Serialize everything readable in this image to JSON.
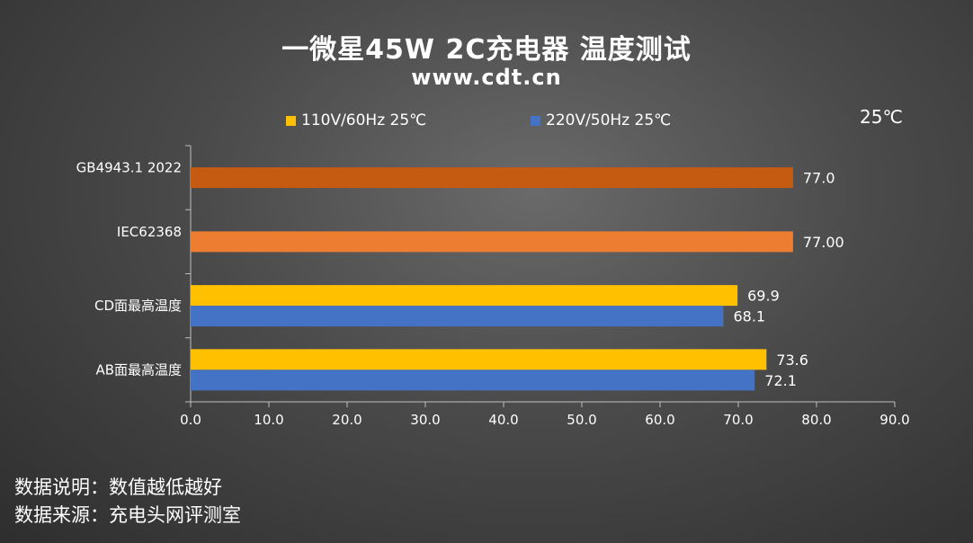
{
  "header": {
    "title": "一微星45W 2C充电器 温度测试",
    "subtitle": "www.cdt.cn",
    "temp_note": "25℃"
  },
  "footer": {
    "note1": "数据说明：数值越低越好",
    "note2": "数据来源：充电头网评测室"
  },
  "colors": {
    "yellow": "#FFC000",
    "blue": "#4472C4",
    "dark_orange": "#C55A11",
    "orange": "#ED7D31"
  },
  "chart_data": {
    "type": "bar",
    "orientation": "horizontal",
    "categories": [
      "GB4943.1 2022",
      "IEC62368",
      "CD面最高温度",
      "AB面最高温度"
    ],
    "series": [
      {
        "name": "110V/60Hz 25℃",
        "color": "#FFC000",
        "values": [
          null,
          null,
          69.9,
          73.6
        ],
        "labels": [
          "",
          "",
          "69.9",
          "73.6"
        ]
      },
      {
        "name": "220V/50Hz 25℃",
        "color": "#4472C4",
        "values": [
          null,
          null,
          68.1,
          72.1
        ],
        "labels": [
          "",
          "",
          "68.1",
          "72.1"
        ]
      }
    ],
    "limits": [
      {
        "category": "GB4943.1 2022",
        "value": 77.0,
        "label": "77.0",
        "color": "#C55A11"
      },
      {
        "category": "IEC62368",
        "value": 77.0,
        "label": "77.00",
        "color": "#ED7D31"
      }
    ],
    "xlim": [
      0,
      90
    ],
    "xticks": [
      "0.0",
      "10.0",
      "20.0",
      "30.0",
      "40.0",
      "50.0",
      "60.0",
      "70.0",
      "80.0",
      "90.0"
    ],
    "tick_values": [
      0,
      10,
      20,
      30,
      40,
      50,
      60,
      70,
      80,
      90
    ],
    "legend_position": "top",
    "grid": false
  }
}
